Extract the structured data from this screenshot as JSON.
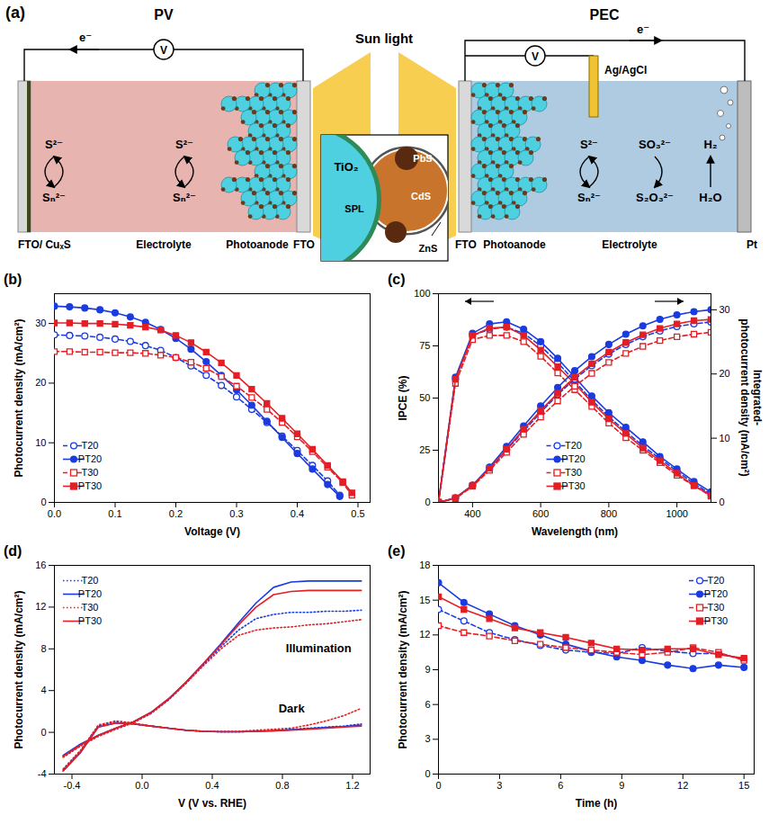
{
  "diagram": {
    "label": "(a)",
    "light": "Sun light",
    "pv": {
      "title": "PV",
      "electron": "e⁻",
      "meter": "V",
      "reactions": [
        [
          "S²⁻",
          "Sₙ²⁻"
        ],
        [
          "S²⁻",
          "Sₙ²⁻"
        ]
      ],
      "labels": [
        "FTO/ CuₓS",
        "Electrolyte",
        "Photoanode",
        "FTO"
      ]
    },
    "inset": [
      "TiO₂",
      "SPL",
      "PbS",
      "CdS",
      "ZnS"
    ],
    "pec": {
      "title": "PEC",
      "electron": "e⁻",
      "meter": "V",
      "reference": "Ag/AgCl",
      "reactions": [
        [
          "S²⁻",
          "Sₙ²⁻"
        ],
        [
          "SO₃²⁻",
          "S₂O₃²⁻"
        ],
        [
          "H₂",
          "H₂O"
        ]
      ],
      "labels": [
        "FTO",
        "Photoanode",
        "Electrolyte",
        "Pt"
      ]
    }
  },
  "chart_data": [
    {
      "panel": "(b)",
      "type": "line",
      "xlabel": "Voltage (V)",
      "ylabel": "Photocurrent density (mA/cm²)",
      "xlim": [
        0,
        0.52
      ],
      "xticks": [
        {
          "value": 0,
          "label": "0.0"
        },
        0.1,
        0.2,
        0.3,
        0.4,
        0.5
      ],
      "ylim": [
        0,
        35
      ],
      "yticks": [
        0,
        10,
        20,
        30
      ],
      "legend": "lower left",
      "series": [
        {
          "name": "T20",
          "color": "#1a3be0",
          "marker": "circle-open",
          "line_style": "dashed",
          "x": [
            0,
            0.025,
            0.05,
            0.075,
            0.1,
            0.125,
            0.15,
            0.175,
            0.2,
            0.225,
            0.25,
            0.275,
            0.3,
            0.325,
            0.35,
            0.375,
            0.4,
            0.425,
            0.45,
            0.47
          ],
          "values": [
            28.1,
            28.0,
            27.9,
            27.7,
            27.4,
            27.0,
            26.3,
            25.5,
            24.3,
            22.9,
            21.3,
            19.6,
            17.7,
            15.6,
            13.4,
            11.1,
            8.7,
            6.2,
            3.6,
            1.2
          ]
        },
        {
          "name": "PT20",
          "color": "#1a3be0",
          "marker": "circle",
          "line_style": "solid",
          "x": [
            0,
            0.025,
            0.05,
            0.075,
            0.1,
            0.125,
            0.15,
            0.175,
            0.2,
            0.225,
            0.25,
            0.275,
            0.3,
            0.325,
            0.35,
            0.375,
            0.4,
            0.425,
            0.45,
            0.47
          ],
          "values": [
            32.9,
            32.8,
            32.6,
            32.3,
            31.8,
            31.1,
            30.2,
            29.0,
            27.5,
            25.7,
            23.6,
            21.3,
            18.9,
            16.3,
            13.6,
            10.9,
            8.2,
            5.6,
            3.0,
            1.0
          ]
        },
        {
          "name": "T30",
          "color": "#e31e24",
          "marker": "square-open",
          "line_style": "dashed",
          "x": [
            0,
            0.025,
            0.05,
            0.075,
            0.1,
            0.125,
            0.15,
            0.175,
            0.2,
            0.225,
            0.25,
            0.275,
            0.3,
            0.325,
            0.35,
            0.375,
            0.4,
            0.425,
            0.45,
            0.475,
            0.49
          ],
          "values": [
            25.3,
            25.3,
            25.2,
            25.2,
            25.1,
            25.1,
            25.0,
            24.7,
            24.3,
            23.5,
            22.5,
            21.1,
            19.5,
            17.6,
            15.6,
            13.4,
            11.0,
            8.5,
            5.9,
            3.3,
            1.2
          ]
        },
        {
          "name": "PT30",
          "color": "#e31e24",
          "marker": "square",
          "line_style": "solid",
          "x": [
            0,
            0.025,
            0.05,
            0.075,
            0.1,
            0.125,
            0.15,
            0.175,
            0.2,
            0.225,
            0.25,
            0.275,
            0.3,
            0.325,
            0.35,
            0.375,
            0.4,
            0.425,
            0.45,
            0.475,
            0.49
          ],
          "values": [
            30.1,
            30.1,
            30.0,
            30.0,
            29.9,
            29.7,
            29.4,
            28.9,
            28.0,
            26.8,
            25.2,
            23.4,
            21.3,
            19.0,
            16.6,
            14.1,
            11.5,
            8.9,
            6.2,
            3.5,
            1.6
          ]
        }
      ]
    },
    {
      "panel": "(c)",
      "type": "line",
      "xlabel": "Wavelength (nm)",
      "ylabel": "IPCE (%)",
      "y2label": "Integrated-photocurrent density (mA/cm²)",
      "xlim": [
        300,
        1100
      ],
      "xticks": [
        400,
        600,
        800,
        1000
      ],
      "ylim": [
        0,
        100
      ],
      "yticks": [
        0,
        25,
        50,
        75,
        100
      ],
      "y2lim": [
        0,
        32.5
      ],
      "y2ticks": [
        0,
        10,
        20,
        30
      ],
      "legend": "lower center",
      "x": [
        300,
        350,
        400,
        450,
        500,
        550,
        600,
        650,
        700,
        750,
        800,
        850,
        900,
        950,
        1000,
        1050,
        1100
      ],
      "series": [
        {
          "name": "T20",
          "color": "#1a3be0",
          "marker": "circle-open",
          "line_style": "dashed",
          "values": [
            0,
            59,
            80,
            83,
            84,
            81,
            75,
            67,
            58,
            49,
            41,
            34,
            27,
            21,
            15,
            9,
            4
          ]
        },
        {
          "name": "PT20",
          "color": "#1a3be0",
          "marker": "circle",
          "line_style": "solid",
          "values": [
            0,
            60,
            81,
            85.5,
            86.5,
            83,
            77,
            69,
            60,
            51,
            43,
            36,
            29,
            22,
            16,
            10,
            5
          ]
        },
        {
          "name": "T30",
          "color": "#e31e24",
          "marker": "square-open",
          "line_style": "dashed",
          "values": [
            0,
            57,
            78,
            80,
            80,
            77,
            70,
            62,
            54,
            46,
            38,
            31,
            25,
            19,
            13,
            8,
            3
          ]
        },
        {
          "name": "PT30",
          "color": "#e31e24",
          "marker": "square",
          "line_style": "solid",
          "values": [
            0,
            59,
            80,
            83.5,
            84,
            80,
            73,
            65,
            57,
            48,
            40,
            33,
            26,
            20,
            14,
            8,
            3.5
          ]
        },
        {
          "name": "T20",
          "color": "#1a3be0",
          "marker": "circle-open",
          "line_style": "dashed",
          "axis": "y2",
          "values": [
            0,
            0.7,
            2.6,
            5.2,
            8.2,
            11.1,
            14.0,
            16.8,
            19.2,
            21.3,
            23.1,
            24.6,
            25.8,
            26.7,
            27.4,
            27.8,
            28.1
          ]
        },
        {
          "name": "PT20",
          "color": "#1a3be0",
          "marker": "circle",
          "line_style": "solid",
          "axis": "y2",
          "values": [
            0,
            0.7,
            2.7,
            5.5,
            8.7,
            11.9,
            15.0,
            17.9,
            20.5,
            22.7,
            24.6,
            26.2,
            27.5,
            28.5,
            29.2,
            29.7,
            30.0
          ]
        },
        {
          "name": "T30",
          "color": "#e31e24",
          "marker": "square-open",
          "line_style": "dashed",
          "axis": "y2",
          "values": [
            0,
            0.6,
            2.5,
            5.0,
            7.8,
            10.6,
            13.3,
            15.8,
            18.1,
            20.1,
            21.8,
            23.2,
            24.3,
            25.2,
            25.8,
            26.2,
            26.5
          ]
        },
        {
          "name": "PT30",
          "color": "#e31e24",
          "marker": "square",
          "line_style": "solid",
          "axis": "y2",
          "values": [
            0,
            0.7,
            2.6,
            5.3,
            8.3,
            11.4,
            14.3,
            17.0,
            19.5,
            21.6,
            23.4,
            24.9,
            26.1,
            27.1,
            27.8,
            28.3,
            28.5
          ]
        }
      ]
    },
    {
      "panel": "(d)",
      "type": "line",
      "xlabel": "V (V vs. RHE)",
      "ylabel": "Photocurrent density (mA/cm²)",
      "xlim": [
        -0.5,
        1.3
      ],
      "xticks": [
        -0.4,
        {
          "value": 0,
          "label": "0.0"
        },
        0.4,
        0.8,
        1.2
      ],
      "ylim": [
        -4,
        16
      ],
      "yticks": [
        -4,
        0,
        4,
        8,
        12,
        16
      ],
      "annotations": [
        "Illumination",
        "Dark"
      ],
      "legend": "upper left",
      "x": [
        -0.45,
        -0.35,
        -0.25,
        -0.15,
        -0.05,
        0.05,
        0.15,
        0.25,
        0.35,
        0.45,
        0.55,
        0.65,
        0.75,
        0.85,
        0.95,
        1.05,
        1.15,
        1.25
      ],
      "series": [
        {
          "name": "T20",
          "color": "#1a3be0",
          "line_style": "dotted",
          "illumination": [
            -2.3,
            -1.2,
            -0.3,
            0.4,
            1.0,
            1.8,
            3.1,
            4.7,
            6.5,
            8.2,
            9.8,
            10.9,
            11.3,
            11.5,
            11.5,
            11.6,
            11.6,
            11.7
          ],
          "dark": [
            -3.6,
            -1.8,
            0.6,
            1.0,
            0.8,
            0.6,
            0.4,
            0.2,
            0.1,
            0.05,
            0.05,
            0.1,
            0.2,
            0.3,
            0.4,
            0.5,
            0.6,
            0.8
          ]
        },
        {
          "name": "PT20",
          "color": "#1a3be0",
          "line_style": "solid",
          "illumination": [
            -2.2,
            -1.1,
            -0.3,
            0.4,
            1.0,
            1.9,
            3.2,
            4.8,
            6.6,
            8.5,
            10.5,
            12.4,
            13.9,
            14.4,
            14.5,
            14.5,
            14.5,
            14.5
          ],
          "dark": [
            -3.7,
            -1.9,
            0.5,
            0.9,
            0.8,
            0.6,
            0.4,
            0.2,
            0.1,
            0.05,
            0.05,
            0.1,
            0.15,
            0.25,
            0.35,
            0.45,
            0.55,
            0.7
          ]
        },
        {
          "name": "T30",
          "color": "#e31e24",
          "line_style": "dotted",
          "illumination": [
            -2.4,
            -1.3,
            -0.4,
            0.3,
            0.9,
            1.8,
            3.1,
            4.7,
            6.4,
            8.0,
            9.3,
            9.8,
            10.0,
            10.1,
            10.3,
            10.4,
            10.6,
            10.8
          ],
          "dark": [
            -3.5,
            -1.7,
            0.7,
            1.1,
            0.9,
            0.6,
            0.4,
            0.2,
            0.1,
            0.1,
            0.1,
            0.2,
            0.3,
            0.4,
            0.7,
            1.1,
            1.6,
            2.3
          ]
        },
        {
          "name": "PT30",
          "color": "#e31e24",
          "line_style": "solid",
          "illumination": [
            -2.3,
            -1.2,
            -0.3,
            0.4,
            1.0,
            1.9,
            3.2,
            4.8,
            6.6,
            8.4,
            10.3,
            12.0,
            13.2,
            13.5,
            13.6,
            13.6,
            13.6,
            13.6
          ],
          "dark": [
            -3.7,
            -1.9,
            0.5,
            0.9,
            0.8,
            0.6,
            0.4,
            0.2,
            0.1,
            0.05,
            0.05,
            0.1,
            0.15,
            0.2,
            0.3,
            0.4,
            0.5,
            0.6
          ]
        }
      ]
    },
    {
      "panel": "(e)",
      "type": "line",
      "xlabel": "Time (h)",
      "ylabel": "Photocurrent density (mA/cm²)",
      "xlim": [
        0,
        15.5
      ],
      "xticks": [
        0,
        3,
        6,
        9,
        12,
        15
      ],
      "ylim": [
        0,
        18
      ],
      "yticks": [
        0,
        3,
        6,
        9,
        12,
        15,
        18
      ],
      "legend": "upper right",
      "x": [
        0,
        1.25,
        2.5,
        3.75,
        5,
        6.25,
        7.5,
        8.75,
        10,
        11.25,
        12.5,
        13.75,
        15
      ],
      "series": [
        {
          "name": "T20",
          "color": "#1a3be0",
          "marker": "circle-open",
          "line_style": "dashed",
          "values": [
            14.2,
            13.2,
            12.2,
            11.6,
            11.1,
            10.7,
            10.5,
            10.4,
            10.9,
            10.6,
            10.4,
            10.4,
            9.9
          ]
        },
        {
          "name": "PT20",
          "color": "#1a3be0",
          "marker": "circle",
          "line_style": "solid",
          "values": [
            16.5,
            14.8,
            13.8,
            12.8,
            12.0,
            11.2,
            10.6,
            10.1,
            9.8,
            9.4,
            9.1,
            9.4,
            9.2
          ]
        },
        {
          "name": "T30",
          "color": "#e31e24",
          "marker": "square-open",
          "line_style": "dashed",
          "values": [
            12.8,
            12.2,
            11.9,
            11.5,
            11.2,
            10.9,
            10.7,
            10.5,
            10.3,
            10.5,
            10.9,
            10.5,
            9.8
          ]
        },
        {
          "name": "PT30",
          "color": "#e31e24",
          "marker": "square",
          "line_style": "solid",
          "values": [
            15.3,
            14.2,
            13.4,
            12.6,
            12.2,
            11.8,
            11.3,
            10.8,
            10.7,
            10.8,
            10.8,
            10.3,
            10.0
          ]
        }
      ]
    }
  ]
}
